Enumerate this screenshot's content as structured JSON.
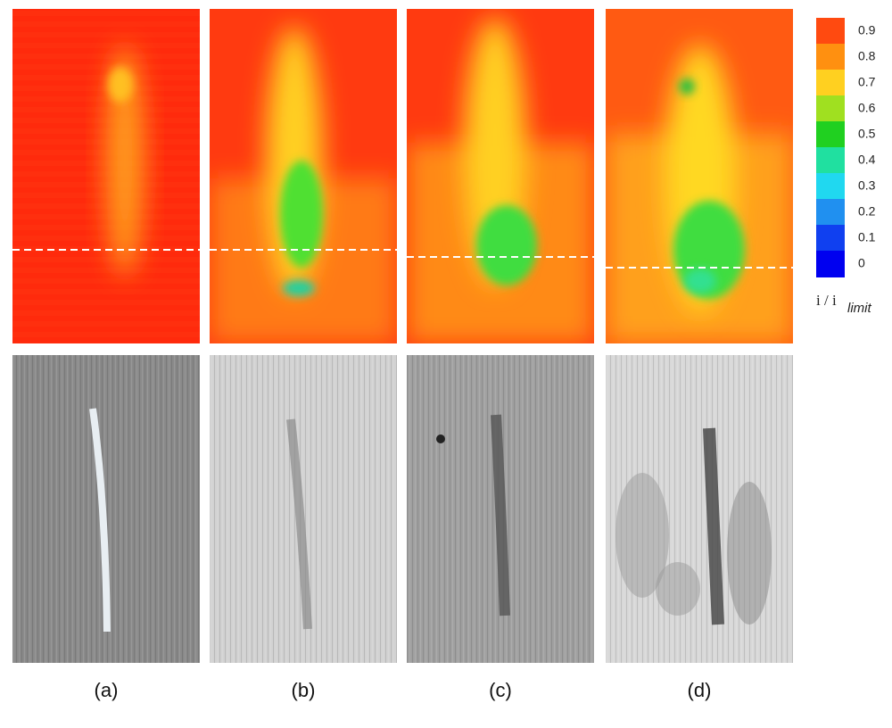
{
  "colorbar": {
    "ticks": [
      "0.9",
      "0.8",
      "0.7",
      "0.6",
      "0.5",
      "0.4",
      "0.3",
      "0.2",
      "0.1",
      "0"
    ],
    "label": "i / i",
    "label_sub": "limit"
  },
  "panels": [
    "(a)",
    "(b)",
    "(c)",
    "(d)"
  ]
}
